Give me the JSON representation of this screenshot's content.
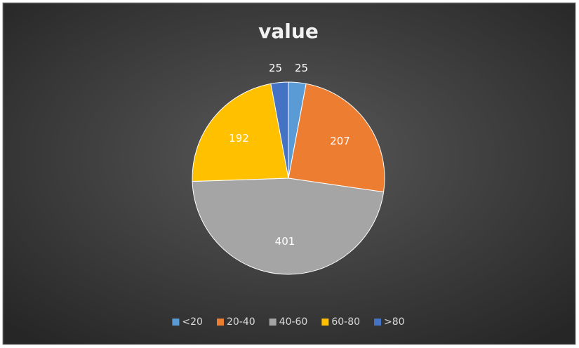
{
  "chart_data": {
    "type": "pie",
    "title": "value",
    "categories": [
      "<20",
      "20-40",
      "40-60",
      "60-80",
      ">80"
    ],
    "values": [
      25,
      207,
      401,
      192,
      25
    ],
    "colors": [
      "#5b9bd5",
      "#ed7d31",
      "#a5a5a5",
      "#ffc000",
      "#4472c4"
    ],
    "legend": "bottom"
  }
}
